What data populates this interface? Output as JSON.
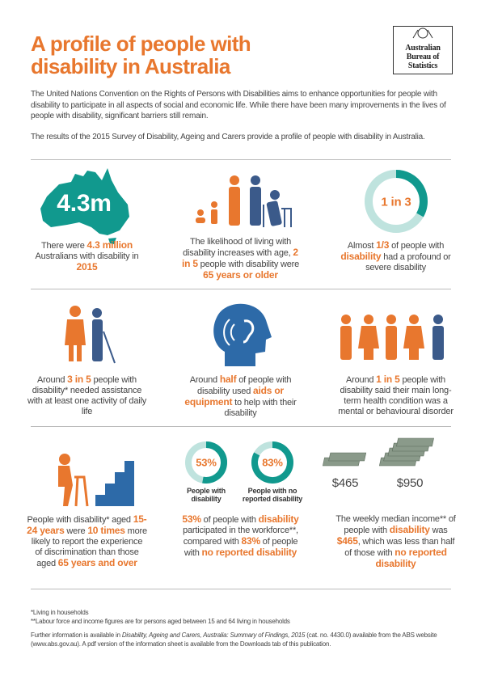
{
  "header": {
    "title": "A profile of people with disability in Australia",
    "logo": "Australian Bureau of Statistics"
  },
  "intro": [
    "The United Nations Convention on the Rights of Persons with Disabilities aims to enhance opportunities for people with disability to participate in all aspects of social and economic life. While there have been many improvements in the lives of people with disability, significant barriers still remain.",
    "The results of the 2015 Survey of Disability, Ageing and Carers provide a profile of people with disability in Australia."
  ],
  "panels": [
    {
      "icon_text": "4.3m",
      "body": [
        {
          "t": "There were "
        },
        {
          "t": "4.3 million",
          "hl": true
        },
        {
          "t": " Australians with disability in "
        },
        {
          "t": "2015",
          "hl": true
        }
      ]
    },
    {
      "body": [
        {
          "t": "The likelihood of living with disability increases with age, "
        },
        {
          "t": "2 in 5",
          "hl": true
        },
        {
          "t": " people with disability were "
        },
        {
          "t": "65 years or older",
          "hl": true
        }
      ]
    },
    {
      "donut": {
        "value": 33.3,
        "label": "1 in 3"
      },
      "body": [
        {
          "t": "Almost "
        },
        {
          "t": "1/3",
          "hl": true
        },
        {
          "t": " of people with "
        },
        {
          "t": "disability",
          "hl": true
        },
        {
          "t": " had a profound or severe disability"
        }
      ]
    },
    {
      "body": [
        {
          "t": "Around "
        },
        {
          "t": "3 in 5",
          "hl": true
        },
        {
          "t": " people with disability* needed assistance with at least one activity of daily life"
        }
      ]
    },
    {
      "body": [
        {
          "t": "Around "
        },
        {
          "t": "half",
          "hl": true
        },
        {
          "t": " of people with disability used "
        },
        {
          "t": "aids or equipment",
          "hl": true
        },
        {
          "t": " to help with their disability"
        }
      ]
    },
    {
      "body": [
        {
          "t": "Around "
        },
        {
          "t": "1 in 5",
          "hl": true
        },
        {
          "t": " people with disability said their main long-term health condition was a mental or behavioural disorder"
        }
      ]
    },
    {
      "body": [
        {
          "t": "People with disability* aged "
        },
        {
          "t": "15-24 years",
          "hl": true
        },
        {
          "t": " were "
        },
        {
          "t": "10 times",
          "hl": true
        },
        {
          "t": " more likely to report the experience of discrimination than those aged "
        },
        {
          "t": "65 years and over",
          "hl": true
        }
      ]
    },
    {
      "donuts": [
        {
          "value": 53,
          "label": "53%",
          "caption": "People with disability"
        },
        {
          "value": 83,
          "label": "83%",
          "caption": "People with no reported disability"
        }
      ],
      "body": [
        {
          "t": "53%",
          "hl": true
        },
        {
          "t": " of people with "
        },
        {
          "t": "disability",
          "hl": true
        },
        {
          "t": " participated in the workforce**, compared with "
        },
        {
          "t": "83%",
          "hl": true
        },
        {
          "t": " of people with "
        },
        {
          "t": "no reported disability",
          "hl": true
        }
      ]
    },
    {
      "amounts": [
        "$465",
        "$950"
      ],
      "body": [
        {
          "t": "The weekly median income** of people with "
        },
        {
          "t": "disability",
          "hl": true
        },
        {
          "t": " was "
        },
        {
          "t": "$465",
          "hl": true
        },
        {
          "t": ", which was less than half of those with "
        },
        {
          "t": "no reported disability",
          "hl": true
        }
      ]
    }
  ],
  "footer": {
    "notes": [
      "*Living in households",
      "**Labour force and income figures are for persons aged between 15 and 64 living in households"
    ],
    "further": [
      {
        "t": "Further information is available in "
      },
      {
        "t": "Disability, Ageing and Carers, Australia: Summary of Findings, 2015",
        "it": true
      },
      {
        "t": " (cat. no. 4430.0) available from the ABS website (www.abs.gov.au). A pdf version of the information sheet is available from the Downloads tab of this publication."
      }
    ]
  }
}
